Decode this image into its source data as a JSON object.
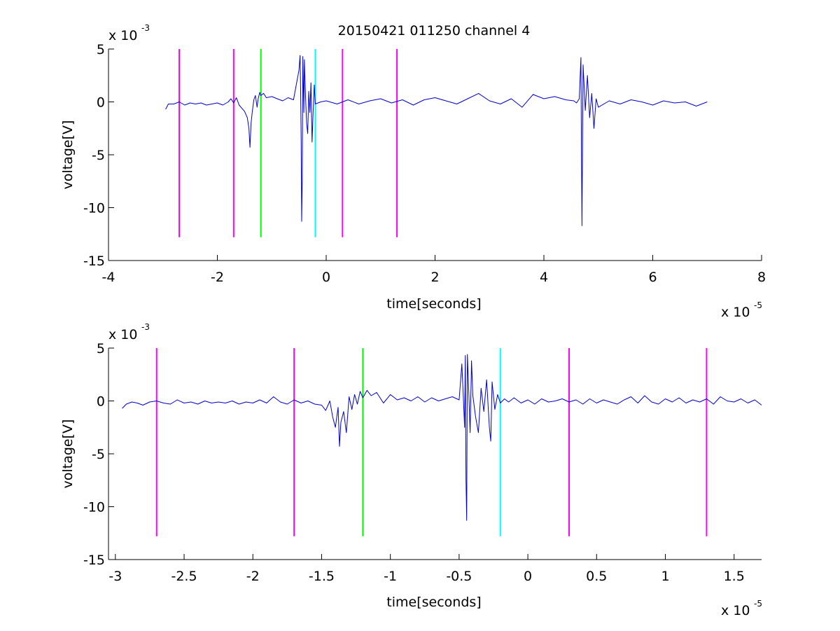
{
  "figure_title": "20150421 011250 channel 4",
  "colors": {
    "signal": "#0000cc",
    "marker_magenta": "#ff00ff",
    "marker_green": "#00ff00",
    "marker_cyan": "#00ffff",
    "axes": "#000000",
    "background": "#ffffff"
  },
  "chart_data": [
    {
      "type": "line",
      "title": "20150421 011250 channel 4",
      "xlabel": "time[seconds]",
      "ylabel": "voltage[V]",
      "x_exponent": "x 10",
      "x_exponent_power": "-5",
      "y_exponent": "x 10",
      "y_exponent_power": "-3",
      "xlim": [
        -4,
        8
      ],
      "ylim": [
        -15,
        5
      ],
      "x_ticks": [
        -4,
        -2,
        0,
        2,
        4,
        6,
        8
      ],
      "y_ticks": [
        -15,
        -10,
        -5,
        0,
        5
      ],
      "x_tick_labels": [
        "-4",
        "-2",
        "0",
        "2",
        "4",
        "6",
        "8"
      ],
      "y_tick_labels": [
        "-15",
        "-10",
        "-5",
        "0",
        "5"
      ],
      "grid": false,
      "series": [
        {
          "x": [
            -2.95,
            -2.9,
            -2.8,
            -2.7,
            -2.6,
            -2.5,
            -2.4,
            -2.3,
            -2.2,
            -2.1,
            -2.0,
            -1.9,
            -1.8,
            -1.75,
            -1.7,
            -1.65,
            -1.6,
            -1.55,
            -1.5,
            -1.45,
            -1.42,
            -1.4,
            -1.38,
            -1.36,
            -1.33,
            -1.3,
            -1.27,
            -1.25,
            -1.22,
            -1.2,
            -1.15,
            -1.1,
            -1.0,
            -0.9,
            -0.8,
            -0.7,
            -0.6,
            -0.5,
            -0.48,
            -0.47,
            -0.46,
            -0.45,
            -0.44,
            -0.43,
            -0.42,
            -0.41,
            -0.4,
            -0.38,
            -0.36,
            -0.34,
            -0.32,
            -0.3,
            -0.28,
            -0.26,
            -0.24,
            -0.22,
            -0.2,
            -0.15,
            -0.1,
            0.0,
            0.2,
            0.4,
            0.6,
            0.8,
            1.0,
            1.2,
            1.4,
            1.6,
            1.8,
            2.0,
            2.2,
            2.4,
            2.6,
            2.8,
            3.0,
            3.2,
            3.4,
            3.6,
            3.8,
            4.0,
            4.2,
            4.4,
            4.55,
            4.6,
            4.65,
            4.68,
            4.69,
            4.7,
            4.71,
            4.72,
            4.74,
            4.76,
            4.8,
            4.84,
            4.88,
            4.92,
            4.96,
            5.0,
            5.2,
            5.4,
            5.6,
            5.8,
            6.0,
            6.2,
            6.4,
            6.6,
            6.8,
            7.0
          ],
          "y": [
            -0.7,
            -0.2,
            -0.2,
            0.0,
            -0.3,
            -0.1,
            -0.2,
            -0.1,
            -0.3,
            -0.2,
            -0.1,
            -0.3,
            0.0,
            0.3,
            -0.1,
            0.4,
            -0.3,
            -0.6,
            -0.9,
            -1.5,
            -2.5,
            -4.3,
            -2.0,
            -1.0,
            0.2,
            0.6,
            -0.5,
            0.3,
            0.9,
            0.6,
            0.8,
            0.4,
            0.5,
            0.3,
            0.1,
            0.4,
            0.2,
            3.0,
            4.4,
            1.0,
            -3.5,
            -11.3,
            -7.5,
            4.3,
            2.0,
            -1.0,
            4.0,
            0.5,
            -2.0,
            -3.0,
            1.0,
            -1.0,
            1.8,
            -3.8,
            -1.0,
            1.6,
            -0.2,
            -0.1,
            0.0,
            0.1,
            -0.2,
            0.2,
            -0.2,
            0.1,
            0.3,
            -0.1,
            0.2,
            -0.3,
            0.2,
            0.4,
            0.1,
            -0.2,
            0.3,
            0.8,
            0.1,
            -0.2,
            0.3,
            -0.5,
            0.7,
            0.3,
            0.5,
            0.2,
            0.1,
            -0.1,
            0.3,
            4.2,
            -3.8,
            -11.7,
            -4.0,
            3.5,
            1.5,
            -0.8,
            2.5,
            -1.5,
            0.8,
            -2.5,
            0.3,
            -0.5,
            0.1,
            -0.2,
            0.2,
            0.0,
            -0.3,
            0.1,
            -0.1,
            0.0,
            -0.4,
            0.0
          ]
        }
      ],
      "markers": [
        {
          "x": -2.7,
          "color": "magenta"
        },
        {
          "x": -1.7,
          "color": "magenta"
        },
        {
          "x": -1.2,
          "color": "green"
        },
        {
          "x": -0.2,
          "color": "cyan"
        },
        {
          "x": 0.3,
          "color": "magenta"
        },
        {
          "x": 1.3,
          "color": "magenta"
        }
      ],
      "marker_range": [
        -12.8,
        5
      ]
    },
    {
      "type": "line",
      "title": "",
      "xlabel": "time[seconds]",
      "ylabel": "voltage[V]",
      "x_exponent": "x 10",
      "x_exponent_power": "-5",
      "y_exponent": "x 10",
      "y_exponent_power": "-3",
      "xlim": [
        -3.05,
        1.7
      ],
      "ylim": [
        -15,
        5
      ],
      "x_ticks": [
        -3,
        -2.5,
        -2,
        -1.5,
        -1,
        -0.5,
        0,
        0.5,
        1,
        1.5
      ],
      "y_ticks": [
        -15,
        -10,
        -5,
        0,
        5
      ],
      "x_tick_labels": [
        "-3",
        "-2.5",
        "-2",
        "-1.5",
        "-1",
        "-0.5",
        "0",
        "0.5",
        "1",
        "1.5"
      ],
      "y_tick_labels": [
        "-15",
        "-10",
        "-5",
        "0",
        "5"
      ],
      "grid": false,
      "series": [
        {
          "x": [
            -2.95,
            -2.92,
            -2.88,
            -2.84,
            -2.8,
            -2.75,
            -2.7,
            -2.65,
            -2.6,
            -2.55,
            -2.5,
            -2.45,
            -2.4,
            -2.35,
            -2.3,
            -2.25,
            -2.2,
            -2.15,
            -2.1,
            -2.05,
            -2.0,
            -1.95,
            -1.9,
            -1.85,
            -1.8,
            -1.75,
            -1.7,
            -1.65,
            -1.6,
            -1.55,
            -1.5,
            -1.47,
            -1.44,
            -1.42,
            -1.4,
            -1.38,
            -1.37,
            -1.36,
            -1.34,
            -1.32,
            -1.3,
            -1.28,
            -1.26,
            -1.24,
            -1.22,
            -1.2,
            -1.17,
            -1.14,
            -1.1,
            -1.05,
            -1.0,
            -0.95,
            -0.9,
            -0.85,
            -0.8,
            -0.75,
            -0.7,
            -0.65,
            -0.6,
            -0.55,
            -0.5,
            -0.48,
            -0.47,
            -0.46,
            -0.455,
            -0.45,
            -0.445,
            -0.44,
            -0.43,
            -0.42,
            -0.41,
            -0.4,
            -0.38,
            -0.36,
            -0.34,
            -0.32,
            -0.3,
            -0.28,
            -0.27,
            -0.26,
            -0.24,
            -0.22,
            -0.2,
            -0.17,
            -0.14,
            -0.1,
            -0.05,
            0.0,
            0.05,
            0.1,
            0.15,
            0.2,
            0.25,
            0.3,
            0.35,
            0.4,
            0.45,
            0.5,
            0.55,
            0.6,
            0.65,
            0.7,
            0.75,
            0.8,
            0.85,
            0.9,
            0.95,
            1.0,
            1.05,
            1.1,
            1.15,
            1.2,
            1.25,
            1.3,
            1.35,
            1.4,
            1.45,
            1.5,
            1.55,
            1.6,
            1.65,
            1.7
          ],
          "y": [
            -0.7,
            -0.3,
            -0.1,
            -0.2,
            -0.4,
            -0.1,
            0.0,
            -0.2,
            -0.3,
            0.1,
            -0.2,
            -0.1,
            -0.3,
            0.0,
            -0.2,
            -0.1,
            -0.2,
            0.0,
            -0.3,
            -0.1,
            -0.2,
            0.1,
            -0.2,
            0.4,
            -0.1,
            -0.3,
            0.1,
            -0.2,
            0.0,
            -0.3,
            -0.4,
            -0.9,
            0.0,
            -1.5,
            -2.5,
            -0.6,
            -4.3,
            -2.0,
            -1.0,
            -3.0,
            0.4,
            -0.8,
            0.6,
            -0.3,
            0.9,
            0.3,
            1.0,
            0.5,
            0.8,
            -0.2,
            0.6,
            0.1,
            0.3,
            0.0,
            0.4,
            -0.1,
            0.3,
            0.0,
            0.2,
            0.4,
            0.1,
            3.5,
            0.5,
            -2.5,
            4.3,
            -7.5,
            -11.3,
            4.4,
            1.0,
            -3.0,
            3.8,
            0.5,
            -1.5,
            -3.0,
            1.2,
            -1.0,
            2.0,
            -2.5,
            -3.8,
            1.8,
            -0.8,
            0.6,
            -0.2,
            0.2,
            -0.1,
            0.3,
            -0.2,
            0.1,
            -0.3,
            0.2,
            -0.1,
            0.0,
            0.2,
            -0.1,
            0.1,
            -0.3,
            0.2,
            -0.2,
            0.1,
            -0.1,
            -0.3,
            0.1,
            0.4,
            -0.2,
            0.5,
            -0.1,
            -0.3,
            0.2,
            -0.1,
            0.3,
            -0.2,
            0.1,
            -0.1,
            0.2,
            -0.3,
            0.4,
            0.0,
            -0.1,
            0.2,
            -0.2,
            0.1,
            -0.4
          ]
        }
      ],
      "markers": [
        {
          "x": -2.7,
          "color": "magenta"
        },
        {
          "x": -1.7,
          "color": "magenta"
        },
        {
          "x": -1.2,
          "color": "green"
        },
        {
          "x": -0.2,
          "color": "cyan"
        },
        {
          "x": 0.3,
          "color": "magenta"
        },
        {
          "x": 1.3,
          "color": "magenta"
        }
      ],
      "marker_range": [
        -12.8,
        5
      ]
    }
  ]
}
